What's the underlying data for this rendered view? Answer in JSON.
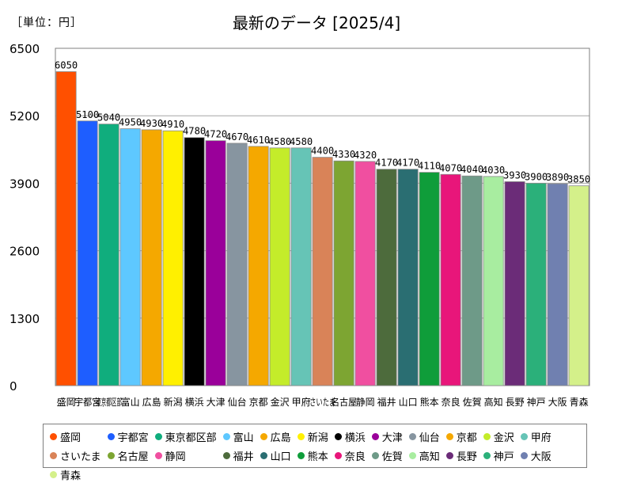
{
  "header": {
    "unit": "［単位：円］",
    "title": "最新のデータ [2025/4]"
  },
  "chart_data": {
    "type": "bar",
    "title": "最新のデータ [2025/4]",
    "unit": "［単位：円］",
    "ylim": [
      0,
      6500
    ],
    "yticks": [
      0,
      1300,
      2600,
      3900,
      5200,
      6500
    ],
    "grid": true,
    "legend_position": "bottom",
    "categories": [
      "盛岡",
      "宇都宮",
      "東京都区部",
      "富山",
      "広島",
      "新潟",
      "横浜",
      "大津",
      "仙台",
      "京都",
      "金沢",
      "甲府",
      "さいたま",
      "名古屋",
      "静岡",
      "福井",
      "山口",
      "熊本",
      "奈良",
      "佐賀",
      "高知",
      "長野",
      "神戸",
      "大阪",
      "青森"
    ],
    "values": [
      6050,
      5100,
      5040,
      4950,
      4930,
      4910,
      4780,
      4720,
      4670,
      4610,
      4580,
      4580,
      4400,
      4330,
      4320,
      4170,
      4170,
      4110,
      4070,
      4040,
      4030,
      3930,
      3900,
      3890,
      3850
    ],
    "value_labels": [
      "6050",
      "5100",
      "5040",
      "4950",
      "4930",
      "4910",
      "4780",
      "4720",
      "4670",
      "4610",
      "4580",
      "4580",
      "4400",
      "4330",
      "4320",
      "4170",
      "4170",
      "4110",
      "4070",
      "4040",
      "4030",
      "3930",
      "3900",
      "3890",
      "3850"
    ],
    "colors": [
      "#ff5000",
      "#1e5eff",
      "#10ad7d",
      "#5ec8ff",
      "#f5a800",
      "#fff000",
      "#000000",
      "#9a009a",
      "#8795a0",
      "#f5a800",
      "#c4ec2a",
      "#66c4b6",
      "#d98358",
      "#7da532",
      "#f04fa0",
      "#4d6b3c",
      "#2a6e72",
      "#0f9d3a",
      "#e8167a",
      "#6e9a88",
      "#a8eda0",
      "#6b2c78",
      "#2bb07a",
      "#7080b0",
      "#d4f08a"
    ]
  }
}
